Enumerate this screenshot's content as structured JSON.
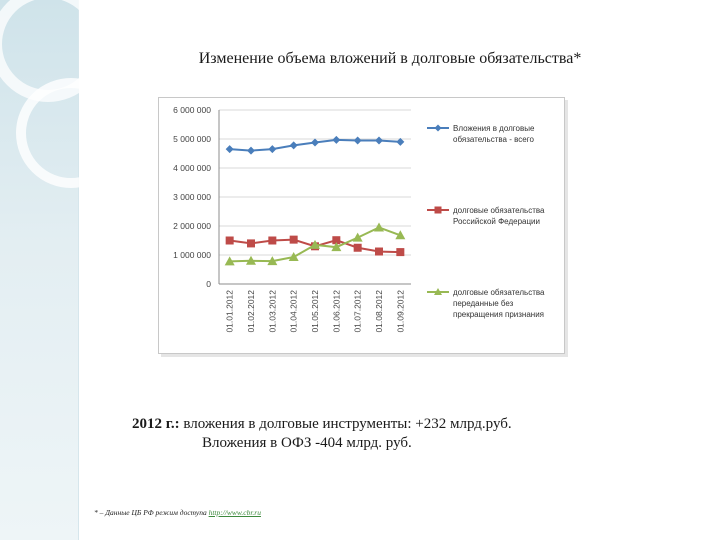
{
  "page": {
    "title": "Изменение объема вложений в долговые обязательства*",
    "summary_year": "2012 г.:",
    "summary_line1": " вложения в долговые инструменты: +232 млрд.руб.",
    "summary_line2": "Вложения в ОФЗ -404 млрд. руб.",
    "footnote_text": "* – Данные ЦБ РФ режим доступа ",
    "footnote_link": "http://www.cbr.ru"
  },
  "chart_data": {
    "type": "line",
    "categories": [
      "01.01.2012",
      "01.02.2012",
      "01.03.2012",
      "01.04.2012",
      "01.05.2012",
      "01.06.2012",
      "01.07.2012",
      "01.08.2012",
      "01.09.2012"
    ],
    "yticks": [
      "6 000 000",
      "5 000 000",
      "4 000 000",
      "3 000 000",
      "2 000 000",
      "1 000 000",
      "0"
    ],
    "ylim": [
      0,
      6000000
    ],
    "grid": true,
    "legend_position": "right",
    "series": [
      {
        "name_lines": [
          "Вложения в долговые",
          "обязательства - всего"
        ],
        "color": "#4a7ebb",
        "marker": "diamond",
        "values": [
          4650000,
          4600000,
          4650000,
          4780000,
          4880000,
          4970000,
          4950000,
          4950000,
          4900000
        ]
      },
      {
        "name_lines": [
          "долговые обязательства",
          "Российской Федерации"
        ],
        "color": "#be4b48",
        "marker": "square",
        "values": [
          1500000,
          1400000,
          1500000,
          1530000,
          1300000,
          1510000,
          1250000,
          1120000,
          1100000
        ]
      },
      {
        "name_lines": [
          "долговые обязательства",
          "переданные без",
          "прекращения признания"
        ],
        "color": "#98b954",
        "marker": "triangle",
        "values": [
          780000,
          800000,
          790000,
          930000,
          1350000,
          1270000,
          1600000,
          1950000,
          1680000
        ]
      }
    ]
  }
}
